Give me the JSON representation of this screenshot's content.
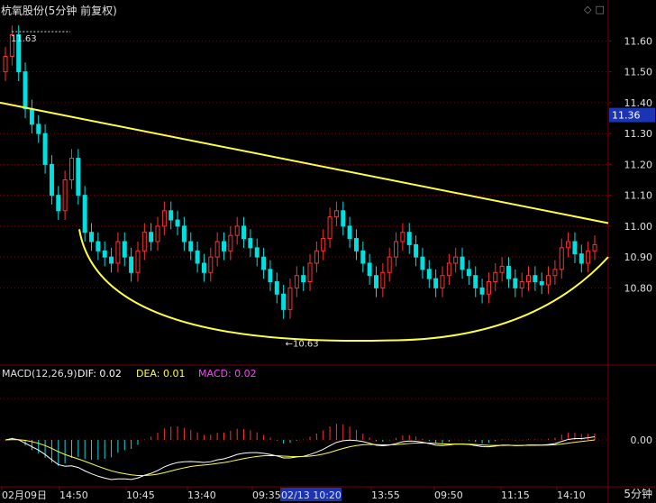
{
  "header": {
    "title": "杭氧股份(5分钟 前复权)",
    "icons": [
      "diamond-icon",
      "square-icon"
    ]
  },
  "price_axis": {
    "ticks": [
      "11.60",
      "11.50",
      "11.40",
      "11.30",
      "11.20",
      "11.10",
      "11.00",
      "10.90",
      "10.80"
    ],
    "current_price": "11.36",
    "high_label": "11.63",
    "low_label": "10.63"
  },
  "macd_panel": {
    "label": "MACD(12,26,9)",
    "dif": "DIF: 0.02",
    "dea": "DEA: 0.01",
    "macd": "MACD: 0.02",
    "zero_tick": "0.00"
  },
  "time_axis": {
    "labels": [
      "02月09日",
      "14:50",
      "10:45",
      "13:40",
      "09:35",
      "02/13 10:20",
      "13:55",
      "09:50",
      "11:15",
      "14:10"
    ],
    "unit": "5分钟"
  },
  "chart_data": {
    "type": "candlestick",
    "title": "杭氧股份(5分钟 前复权)",
    "timeframe": "5分钟",
    "adjustment": "前复权",
    "ylim": [
      10.55,
      11.68
    ],
    "current_price": 11.36,
    "high_marker": 11.63,
    "low_marker": 10.63,
    "x_tick_labels": [
      "02月09日",
      "14:50",
      "10:45",
      "13:40",
      "09:35",
      "02/13 10:20",
      "13:55",
      "09:50",
      "11:15",
      "14:10"
    ],
    "candles_close_approx": [
      11.55,
      11.62,
      11.5,
      11.38,
      11.33,
      11.3,
      11.2,
      11.1,
      11.05,
      11.15,
      11.22,
      11.1,
      10.98,
      10.95,
      10.92,
      10.9,
      10.88,
      10.95,
      10.9,
      10.85,
      10.92,
      10.98,
      10.95,
      11.0,
      11.05,
      11.02,
      11.0,
      10.95,
      10.92,
      10.88,
      10.85,
      10.9,
      10.95,
      10.92,
      10.97,
      11.0,
      10.96,
      10.93,
      10.9,
      10.86,
      10.82,
      10.78,
      10.73,
      10.8,
      10.84,
      10.82,
      10.88,
      10.92,
      10.96,
      11.03,
      11.05,
      11.0,
      10.96,
      10.92,
      10.88,
      10.84,
      10.8,
      10.85,
      10.9,
      10.95,
      10.98,
      10.94,
      10.9,
      10.86,
      10.83,
      10.8,
      10.84,
      10.88,
      10.9,
      10.86,
      10.84,
      10.8,
      10.78,
      10.82,
      10.85,
      10.87,
      10.83,
      10.8,
      10.82,
      10.84,
      10.82,
      10.81,
      10.84,
      10.86,
      10.93,
      10.95,
      10.91,
      10.88,
      10.92,
      10.94
    ],
    "overlays": [
      {
        "type": "trendline",
        "from": {
          "x_index": 0,
          "y": 11.4
        },
        "to": {
          "x_index": 89,
          "y": 11.01
        }
      },
      {
        "type": "arc",
        "description": "rounded bottom",
        "bottom_y": 10.63
      }
    ],
    "macd": {
      "params": "MACD(12,26,9)",
      "dif": 0.02,
      "dea": 0.01,
      "macd": 0.02,
      "zero_label": "0.00"
    },
    "colors": {
      "up": "#ff3030",
      "down": "#00e0e0",
      "trendline": "#ffff40",
      "grid": "#7a0000",
      "dif_line": "#ffffff",
      "dea_line": "#ffff40",
      "macd_label": "#ff40ff",
      "price_label_bg": "#1a34b4"
    }
  }
}
